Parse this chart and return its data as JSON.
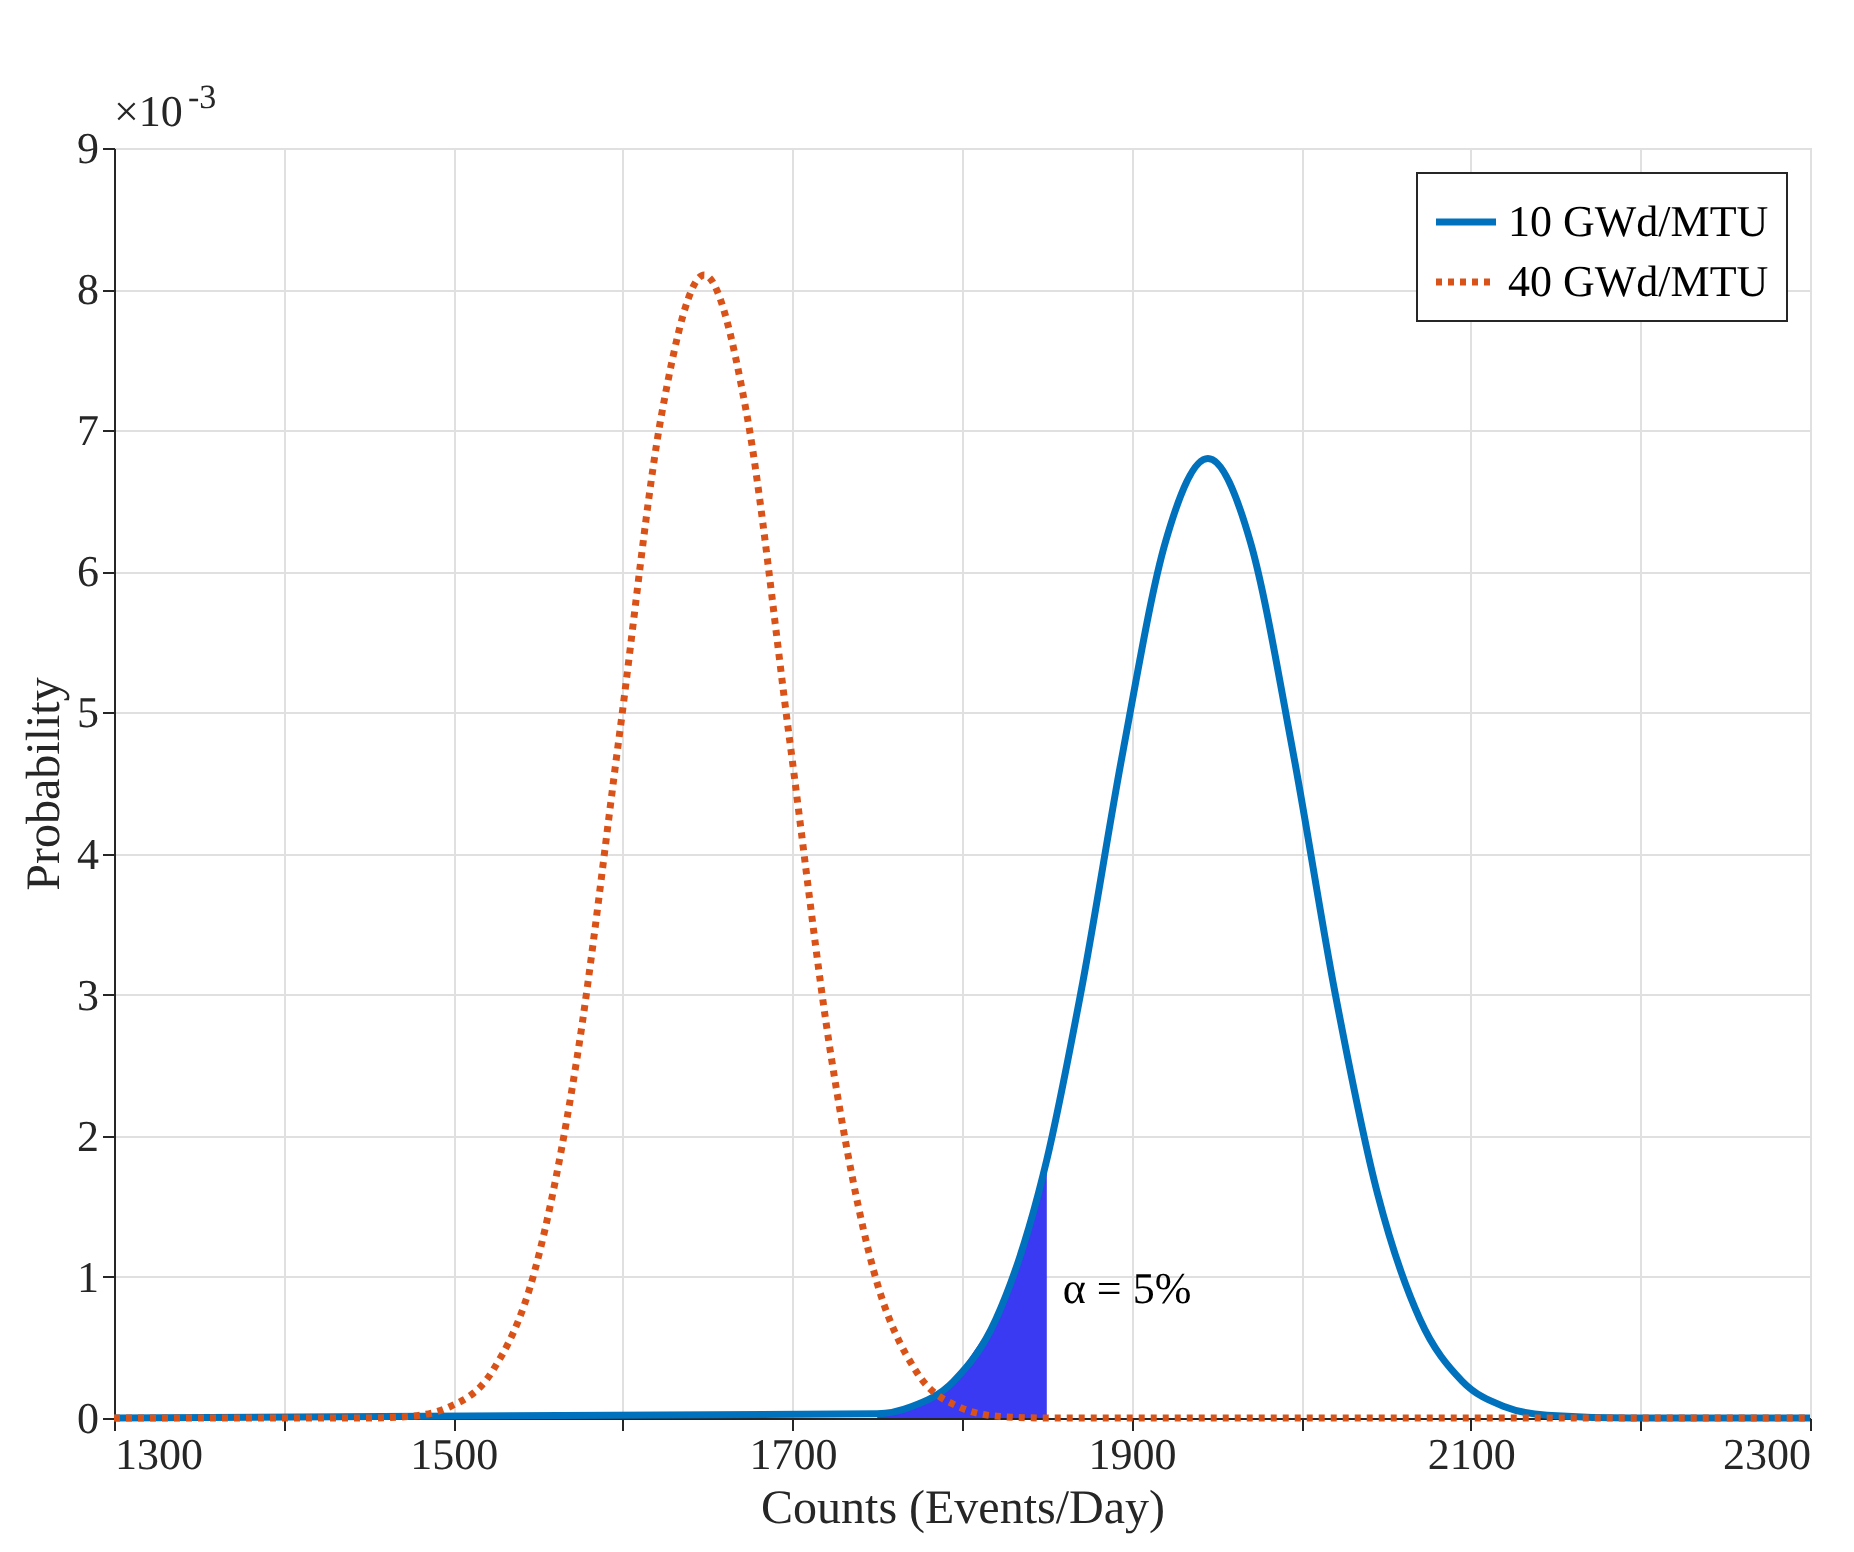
{
  "chart_data": {
    "type": "line",
    "xlabel": "Counts (Events/Day)",
    "ylabel": "Probability",
    "xlim": [
      1300,
      2300
    ],
    "ylim": [
      0,
      9
    ],
    "xticks": [
      1300,
      {
        "value": 1400,
        "label": null
      },
      1500,
      {
        "value": 1600,
        "label": null
      },
      1700,
      {
        "value": 1800,
        "label": null
      },
      1900,
      {
        "value": 2000,
        "label": null
      },
      2100,
      {
        "value": 2200,
        "label": null
      },
      2300
    ],
    "yticks": [
      0,
      1,
      2,
      3,
      4,
      5,
      6,
      7,
      8,
      9
    ],
    "grid": true,
    "legend": "top right",
    "series": [
      {
        "type": "area",
        "color": "#3a3af2",
        "x": [
          1750,
          1770,
          1795,
          1820,
          1845,
          1850
        ],
        "values": [
          0.03,
          0.08,
          0.26,
          0.7,
          1.59,
          1.83
        ]
      },
      {
        "name": "10 GWd/MTU",
        "color": "#0072bd",
        "line_style": "solid",
        "x": [
          1300,
          1750,
          1770,
          1795,
          1820,
          1845,
          1850,
          1870,
          1895,
          1920,
          1945,
          1970,
          1995,
          2020,
          2045,
          2070,
          2095,
          2120,
          2145,
          2195,
          2300
        ],
        "values": [
          0,
          0.03,
          0.08,
          0.26,
          0.7,
          1.59,
          1.83,
          3.01,
          4.73,
          6.21,
          6.8,
          6.21,
          4.73,
          3.01,
          1.59,
          0.7,
          0.26,
          0.08,
          0.02,
          0,
          0
        ]
      },
      {
        "name": "40 GWd/MTU",
        "color": "#d95319",
        "line_style": "dotted",
        "x": [
          1300,
          1450,
          1473,
          1498,
          1523,
          1548,
          1573,
          1598,
          1623,
          1648,
          1673,
          1698,
          1723,
          1748,
          1773,
          1798,
          1823,
          1848,
          2300
        ],
        "values": [
          0,
          0,
          0.01,
          0.08,
          0.33,
          1.04,
          2.55,
          4.84,
          7.12,
          8.1,
          7.12,
          4.84,
          2.55,
          1.04,
          0.33,
          0.08,
          0.01,
          0,
          0
        ]
      }
    ],
    "annotations": [
      "×10$^{-3}$",
      "α = 5%"
    ]
  }
}
